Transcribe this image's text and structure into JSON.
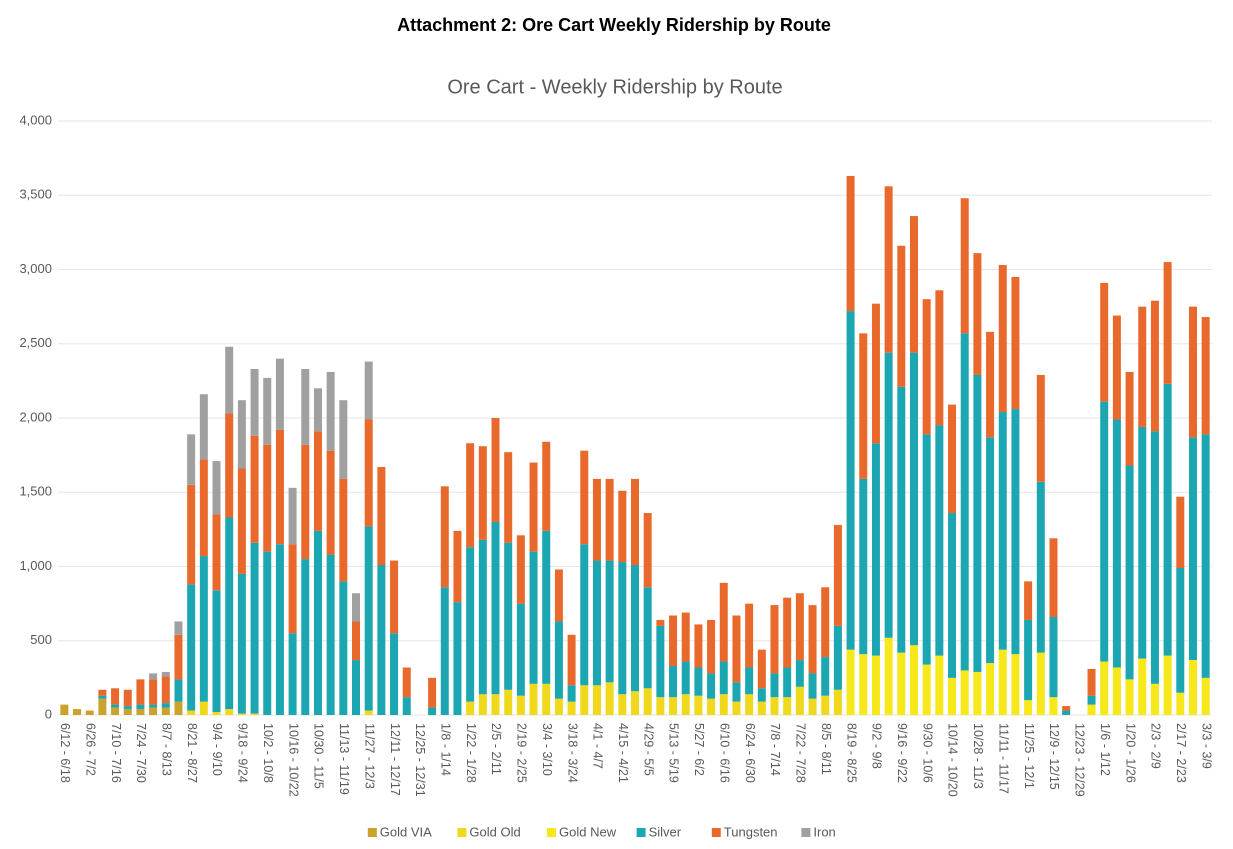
{
  "page_title": "Attachment 2: Ore Cart Weekly Ridership by Route",
  "chart_data": {
    "type": "stacked_bar",
    "title": "Ore Cart - Weekly Ridership by Route",
    "categories": [
      "6/12 - 6/18",
      null,
      "6/26 - 7/2",
      null,
      "7/10 - 7/16",
      null,
      "7/24 - 7/30",
      null,
      "8/7 - 8/13",
      null,
      "8/21 - 8/27",
      null,
      "9/4 - 9/10",
      null,
      "9/18 - 9/24",
      null,
      "10/2 - 10/8",
      null,
      "10/16 - 10/22",
      null,
      "10/30 - 11/5",
      null,
      "11/13 - 11/19",
      null,
      "11/27 - 12/3",
      null,
      "12/11 - 12/17",
      null,
      "12/25 - 12/31",
      null,
      "1/8 - 1/14",
      null,
      "1/22 - 1/28",
      null,
      "2/5 - 2/11",
      null,
      "2/19 - 2/25",
      null,
      "3/4 - 3/10",
      null,
      "3/18 - 3/24",
      null,
      "4/1 - 4/7",
      null,
      "4/15 - 4/21",
      null,
      "4/29 - 5/5",
      null,
      "5/13 - 5/19",
      null,
      "5/27 - 6/2",
      null,
      "6/10 - 6/16",
      null,
      "6/24 - 6/30",
      null,
      "7/8 - 7/14",
      null,
      "7/22 - 7/28",
      null,
      "8/5 - 8/11",
      null,
      "8/19 - 8/25",
      null,
      "9/2 - 9/8",
      null,
      "9/16 - 9/22",
      null,
      "9/30 - 10/6",
      null,
      "10/14 - 10/20",
      null,
      "10/28 - 11/3",
      null,
      "11/11 - 11/17",
      null,
      "11/25 - 12/1",
      null,
      "12/9 - 12/15",
      null,
      "12/23 - 12/29",
      null,
      "1/6 - 1/12",
      null,
      "1/20 - 1/26",
      null,
      "2/3 - 2/9",
      null,
      "2/17 - 2/23",
      null,
      "3/3 - 3/9"
    ],
    "series": [
      {
        "name": "Gold VIA",
        "color": "#c9a32b",
        "values": [
          70,
          40,
          30,
          110,
          50,
          40,
          40,
          50,
          50,
          90,
          0,
          0,
          0,
          0,
          0,
          0,
          0,
          0,
          0,
          0,
          0,
          0,
          0,
          0,
          0,
          0,
          0,
          0,
          0,
          0,
          0,
          0,
          0,
          0,
          0,
          0,
          0,
          0,
          0,
          0,
          0,
          0,
          0,
          0,
          0,
          0,
          0,
          0,
          0,
          0,
          0,
          0,
          0,
          0,
          0,
          0,
          0,
          0,
          0,
          0,
          0,
          0,
          0,
          0,
          0,
          0,
          0,
          0,
          0,
          0,
          0,
          0,
          0,
          0,
          0,
          0,
          0,
          0,
          0,
          0,
          0,
          0,
          0,
          0,
          0,
          0,
          0,
          0,
          0,
          0,
          0
        ]
      },
      {
        "name": "Gold Old",
        "color": "#f0d91c",
        "values": [
          0,
          0,
          0,
          0,
          0,
          0,
          0,
          0,
          0,
          0,
          30,
          90,
          20,
          40,
          10,
          10,
          0,
          0,
          0,
          0,
          0,
          0,
          0,
          0,
          30,
          0,
          0,
          0,
          0,
          0,
          0,
          0,
          90,
          140,
          140,
          170,
          130,
          210,
          210,
          110,
          90,
          200,
          200,
          220,
          140,
          160,
          180,
          120,
          120,
          140,
          130,
          110,
          140,
          90,
          140,
          90,
          120,
          120,
          190,
          110,
          130,
          170,
          0,
          0,
          0,
          0,
          0,
          0,
          0,
          0,
          0,
          0,
          0,
          0,
          0,
          0,
          0,
          0,
          0,
          0,
          0,
          0,
          0,
          0,
          0,
          0,
          0,
          0,
          0,
          0,
          0
        ]
      },
      {
        "name": "Gold New",
        "color": "#f6e81a",
        "values": [
          0,
          0,
          0,
          0,
          0,
          0,
          0,
          0,
          0,
          0,
          0,
          0,
          0,
          0,
          0,
          0,
          0,
          0,
          0,
          0,
          0,
          0,
          0,
          0,
          0,
          0,
          0,
          0,
          0,
          0,
          0,
          0,
          0,
          0,
          0,
          0,
          0,
          0,
          0,
          0,
          0,
          0,
          0,
          0,
          0,
          0,
          0,
          0,
          0,
          0,
          0,
          0,
          0,
          0,
          0,
          0,
          0,
          0,
          0,
          0,
          0,
          0,
          440,
          410,
          400,
          520,
          420,
          470,
          340,
          400,
          250,
          300,
          290,
          350,
          440,
          410,
          100,
          420,
          120,
          0,
          0,
          70,
          360,
          320,
          240,
          380,
          210,
          400,
          150,
          370,
          250
        ]
      },
      {
        "name": "Silver",
        "color": "#1ba6b2",
        "values": [
          0,
          0,
          0,
          20,
          20,
          20,
          30,
          20,
          30,
          150,
          850,
          980,
          820,
          1290,
          940,
          1150,
          1100,
          1150,
          550,
          1050,
          1240,
          1080,
          900,
          370,
          1240,
          1010,
          550,
          120,
          0,
          50,
          860,
          760,
          1040,
          1040,
          1160,
          990,
          620,
          890,
          1030,
          520,
          110,
          950,
          840,
          820,
          890,
          850,
          680,
          480,
          210,
          220,
          190,
          170,
          220,
          130,
          180,
          90,
          160,
          200,
          180,
          170,
          260,
          430,
          2280,
          1180,
          1430,
          1920,
          1790,
          1970,
          1550,
          1550,
          1110,
          2270,
          2000,
          1520,
          1600,
          1650,
          540,
          1150,
          540,
          30,
          0,
          60,
          1750,
          1670,
          1440,
          1560,
          1700,
          1830,
          840,
          1500,
          1640
        ]
      },
      {
        "name": "Tungsten",
        "color": "#e8692b",
        "values": [
          0,
          0,
          0,
          40,
          110,
          110,
          170,
          170,
          180,
          300,
          670,
          650,
          510,
          700,
          710,
          720,
          720,
          770,
          600,
          770,
          670,
          700,
          690,
          260,
          720,
          660,
          490,
          200,
          0,
          200,
          680,
          480,
          700,
          630,
          700,
          610,
          460,
          600,
          600,
          350,
          340,
          630,
          550,
          550,
          480,
          580,
          500,
          40,
          340,
          330,
          290,
          360,
          530,
          450,
          430,
          260,
          460,
          470,
          450,
          460,
          470,
          680,
          910,
          980,
          940,
          1120,
          950,
          920,
          910,
          910,
          730,
          910,
          820,
          710,
          990,
          890,
          260,
          720,
          530,
          30,
          0,
          180,
          800,
          700,
          630,
          810,
          880,
          820,
          480,
          880,
          790
        ]
      },
      {
        "name": "Iron",
        "color": "#a0a0a0",
        "values": [
          0,
          0,
          0,
          0,
          0,
          0,
          0,
          40,
          30,
          90,
          340,
          440,
          360,
          450,
          460,
          450,
          450,
          480,
          380,
          510,
          290,
          530,
          530,
          190,
          390,
          0,
          0,
          0,
          0,
          0,
          0,
          0,
          0,
          0,
          0,
          0,
          0,
          0,
          0,
          0,
          0,
          0,
          0,
          0,
          0,
          0,
          0,
          0,
          0,
          0,
          0,
          0,
          0,
          0,
          0,
          0,
          0,
          0,
          0,
          0,
          0,
          0,
          0,
          0,
          0,
          0,
          0,
          0,
          0,
          0,
          0,
          0,
          0,
          0,
          0,
          0,
          0,
          0,
          0,
          0,
          0,
          0,
          0,
          0,
          0,
          0,
          0,
          0,
          0,
          0,
          0
        ]
      }
    ],
    "ylim": [
      0,
      4000
    ],
    "yticks": [
      0,
      500,
      {
        "value": 1000,
        "label": "1,000"
      },
      {
        "value": 1500,
        "label": "1,500"
      },
      {
        "value": 2000,
        "label": "2,000"
      },
      {
        "value": 2500,
        "label": "2,500"
      },
      {
        "value": 3000,
        "label": "3,000"
      },
      {
        "value": 3500,
        "label": "3,500"
      },
      {
        "value": 4000,
        "label": "4,000"
      }
    ],
    "grid": true,
    "legend": "bottom"
  }
}
